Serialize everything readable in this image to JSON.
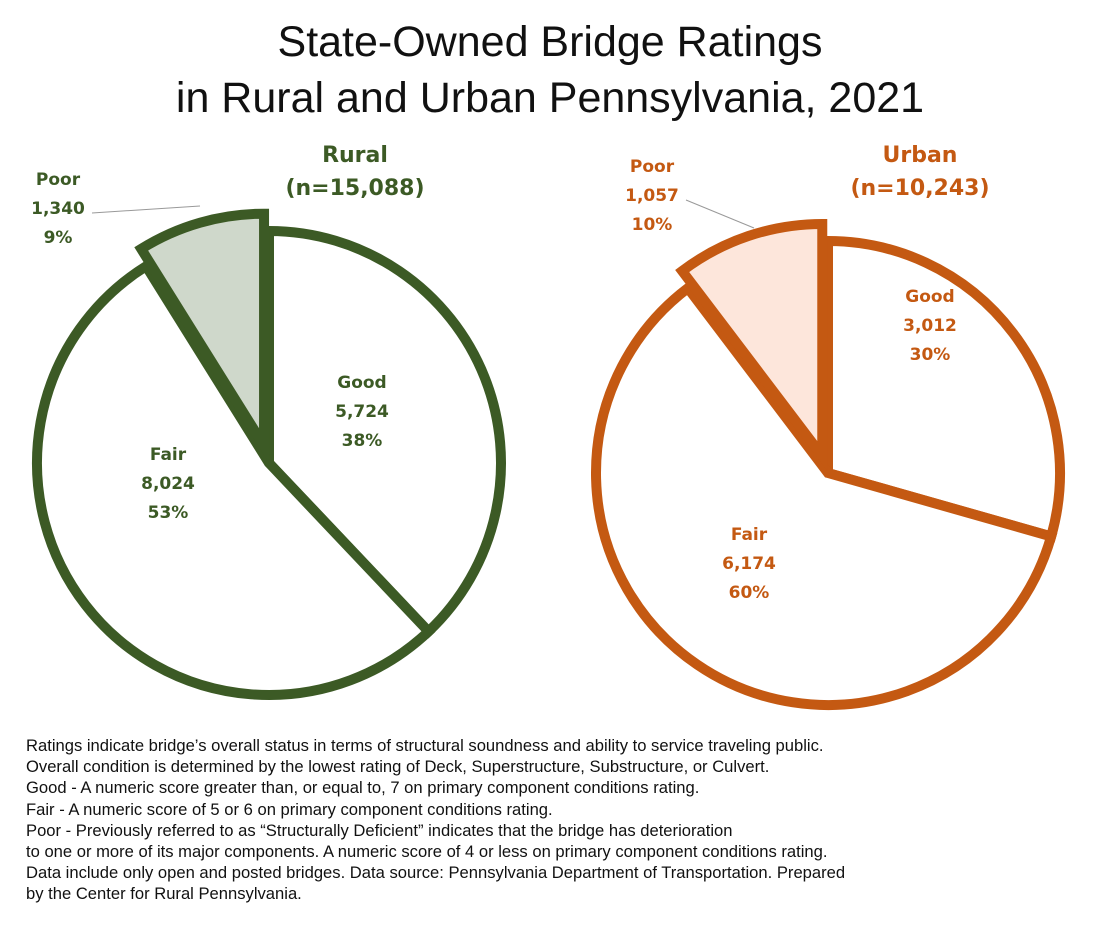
{
  "title": {
    "line1": "State-Owned Bridge Ratings",
    "line2": "in Rural and Urban Pennsylvania, 2021"
  },
  "colors": {
    "rural": "#3c5a25",
    "rural_poor_fill": "#cfd8cb",
    "urban": "#c45912",
    "urban_poor_fill": "#fde6db"
  },
  "chart_data": [
    {
      "type": "pie",
      "title": "Rural",
      "subtitle": "(n=15,088)",
      "categories": [
        "Good",
        "Fair",
        "Poor"
      ],
      "values": [
        5724,
        8024,
        1340
      ],
      "percent_labels": [
        "38%",
        "53%",
        "9%"
      ],
      "value_labels": [
        "5,724",
        "8,024",
        "1,340"
      ],
      "exploded": "Poor"
    },
    {
      "type": "pie",
      "title": "Urban",
      "subtitle": "(n=10,243)",
      "categories": [
        "Good",
        "Fair",
        "Poor"
      ],
      "values": [
        3012,
        6174,
        1057
      ],
      "percent_labels": [
        "30%",
        "60%",
        "10%"
      ],
      "value_labels": [
        "3,012",
        "6,174",
        "1,057"
      ],
      "exploded": "Poor"
    }
  ],
  "notes": [
    "Ratings indicate bridge’s overall status in terms of structural soundness and ability to service traveling public.",
    "Overall condition is determined by the lowest rating of Deck, Superstructure, Substructure, or Culvert.",
    "Good - A numeric score greater than, or equal to, 7 on primary component conditions rating.",
    "Fair - A numeric score of 5 or 6 on primary component conditions rating.",
    "Poor - Previously referred to as “Structurally Deficient” indicates that the bridge has deterioration",
    "to one or more of its major components. A numeric score of 4 or less on primary component conditions rating.",
    "Data include only open and posted bridges. Data source: Pennsylvania Department of Transportation. Prepared",
    "by the Center for Rural Pennsylvania."
  ]
}
